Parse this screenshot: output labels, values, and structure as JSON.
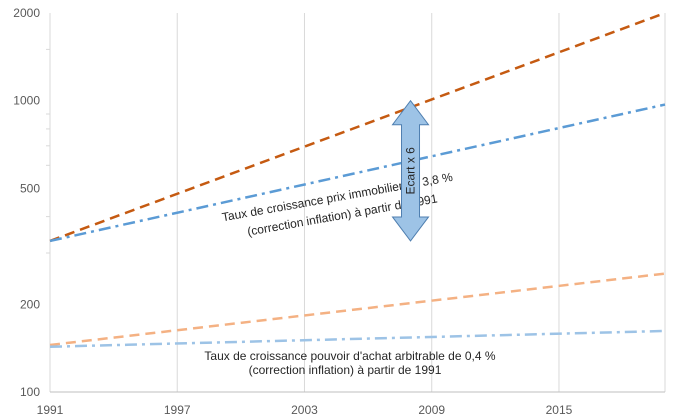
{
  "chart_data": {
    "type": "line",
    "scale": "log",
    "x_range": [
      1991,
      2020
    ],
    "y_range": [
      100,
      2000
    ],
    "x_ticks": [
      "1991",
      "1997",
      "2003",
      "2009",
      "2015"
    ],
    "y_ticks": [
      "100",
      "200",
      "500",
      "1000",
      "2000"
    ],
    "y_tick_values": [
      100,
      200,
      500,
      1000,
      2000
    ],
    "x_tick_values": [
      1991,
      1997,
      2003,
      2009,
      2015
    ],
    "grid": {
      "vertical": true,
      "horizontal": false
    },
    "legend": "none",
    "series": [
      {
        "color": "#C55A11",
        "style": "dash",
        "x": [
          1991,
          2020
        ],
        "y": [
          330,
          2000
        ]
      },
      {
        "color": "#5B9BD5",
        "style": "dash-dot",
        "x": [
          1991,
          2020
        ],
        "y": [
          330,
          970
        ]
      },
      {
        "color": "#F4B183",
        "style": "dash",
        "x": [
          1991,
          2020
        ],
        "y": [
          145,
          255
        ]
      },
      {
        "color": "#9DC3E6",
        "style": "dash-dot",
        "x": [
          1991,
          2020
        ],
        "y": [
          143,
          162
        ]
      }
    ],
    "annotations": {
      "upper_line1": "Taux de croissance prix immobilier de 3,8 %",
      "upper_line2": "(correction inflation) à partir de 1991",
      "lower_line1": "Taux de croissance pouvoir d'achat arbitrable de 0,4 %",
      "lower_line2": "(correction inflation) à partir de 1991",
      "arrow_label": "Ecart x 6"
    },
    "arrow": {
      "x": 2008,
      "from": 330,
      "to": 1000,
      "color": "#9DC3E6"
    }
  }
}
